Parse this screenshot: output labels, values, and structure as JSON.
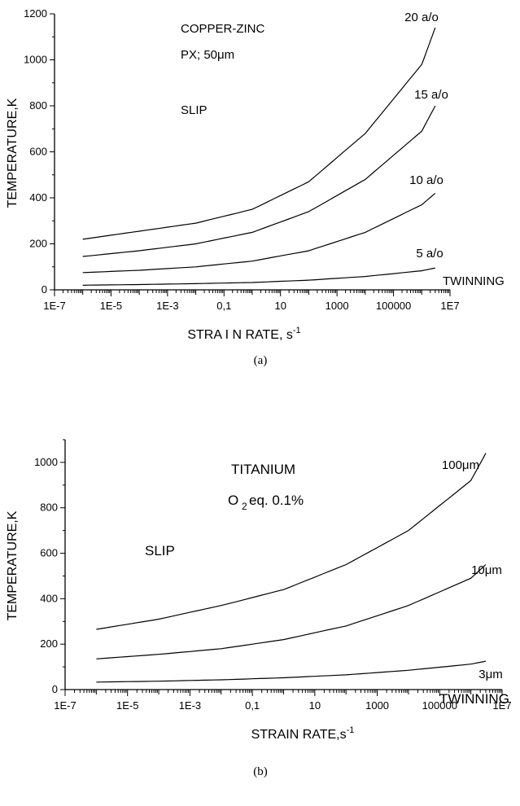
{
  "chart_data": [
    {
      "type": "line",
      "panel_label": "(a)",
      "xlabel": "STRA I N RATE, s",
      "xlabel_sup": "-1",
      "ylabel": "TEMPERATURE,K",
      "x_scale": "log",
      "xlim": [
        1e-07,
        10000000.0
      ],
      "ylim": [
        0,
        1200
      ],
      "x_ticks": [
        1e-07,
        1e-05,
        0.001,
        0.1,
        10,
        1000,
        100000,
        10000000.0
      ],
      "x_tick_labels": [
        "1E-7",
        "1E-5",
        "1E-3",
        "0,1",
        "10",
        "1000",
        "100000",
        "1E7"
      ],
      "y_ticks": [
        0,
        200,
        400,
        600,
        800,
        1000,
        1200
      ],
      "y_tick_labels": [
        "0",
        "200",
        "400",
        "600",
        "800",
        "1000",
        "1200"
      ],
      "grid": false,
      "annotations": [
        "COPPER-ZINC",
        "PX; 50μm",
        "SLIP",
        "TWINNING"
      ],
      "series": [
        {
          "name": "5 a/o",
          "x": [
            1e-06,
            0.0001,
            0.01,
            1,
            100,
            10000,
            1000000,
            3000000
          ],
          "y": [
            20,
            23,
            27,
            32,
            42,
            58,
            83,
            95
          ]
        },
        {
          "name": "10 a/o",
          "x": [
            1e-06,
            0.0001,
            0.01,
            1,
            100,
            10000,
            1000000,
            3000000
          ],
          "y": [
            75,
            85,
            100,
            125,
            170,
            250,
            370,
            420
          ]
        },
        {
          "name": "15 a/o",
          "x": [
            1e-06,
            0.0001,
            0.01,
            1,
            100,
            10000,
            1000000,
            3000000
          ],
          "y": [
            145,
            170,
            200,
            250,
            340,
            480,
            690,
            800
          ]
        },
        {
          "name": "20 a/o",
          "x": [
            1e-06,
            0.0001,
            0.01,
            1,
            100,
            10000,
            1000000,
            3000000
          ],
          "y": [
            220,
            255,
            290,
            350,
            470,
            680,
            980,
            1140
          ]
        }
      ]
    },
    {
      "type": "line",
      "panel_label": "(b)",
      "xlabel": "STRAIN RATE,s",
      "xlabel_sup": "-1",
      "ylabel": "TEMPERATURE,K",
      "x_scale": "log",
      "xlim": [
        1e-07,
        10000000.0
      ],
      "ylim": [
        0,
        1100
      ],
      "x_ticks": [
        1e-07,
        1e-05,
        0.001,
        0.1,
        10,
        1000,
        100000,
        10000000.0
      ],
      "x_tick_labels": [
        "1E-7",
        "1E-5",
        "1E-3",
        "0,1",
        "10",
        "1000",
        "100000",
        "1E7"
      ],
      "y_ticks": [
        0,
        200,
        400,
        600,
        800,
        1000
      ],
      "y_tick_labels": [
        "0",
        "200",
        "400",
        "600",
        "800",
        "1000"
      ],
      "grid": false,
      "annotations": [
        "TITANIUM",
        "O",
        "2",
        "eq. 0.1%",
        "SLIP",
        "TWINNING"
      ],
      "series": [
        {
          "name": "3μm",
          "x": [
            1e-06,
            0.0001,
            0.01,
            1,
            100,
            10000,
            1000000,
            3000000
          ],
          "y": [
            33,
            37,
            43,
            52,
            65,
            85,
            112,
            125
          ]
        },
        {
          "name": "10μm",
          "x": [
            1e-06,
            0.0001,
            0.01,
            1,
            100,
            10000,
            1000000,
            3000000
          ],
          "y": [
            135,
            155,
            180,
            220,
            280,
            370,
            490,
            550
          ]
        },
        {
          "name": "100μm",
          "x": [
            1e-06,
            0.0001,
            0.01,
            1,
            100,
            10000,
            1000000,
            3000000
          ],
          "y": [
            265,
            310,
            370,
            440,
            550,
            700,
            920,
            1040
          ]
        }
      ]
    }
  ]
}
